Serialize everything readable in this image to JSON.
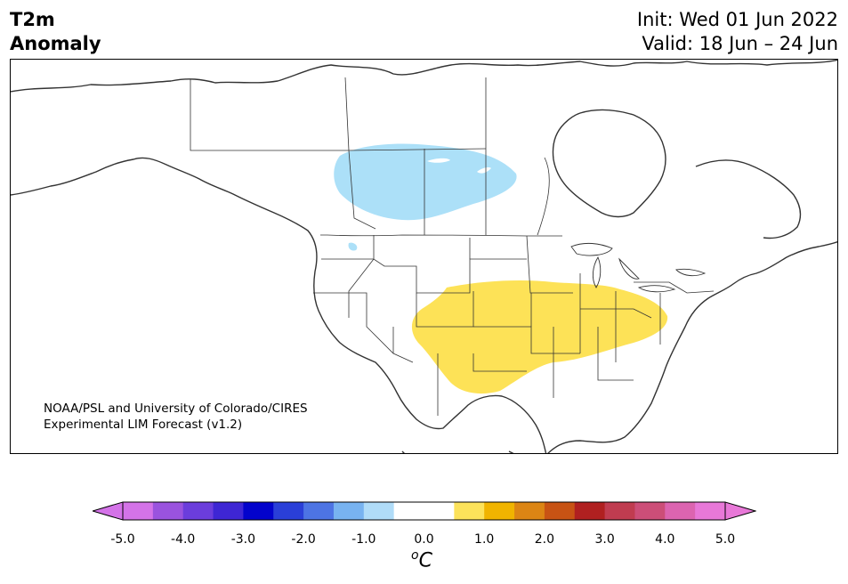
{
  "title": {
    "line1": "T2m",
    "line2": "Anomaly"
  },
  "forecast": {
    "init": "Init: Wed 01 Jun 2022",
    "valid": "Valid: 18 Jun – 24 Jun"
  },
  "credit": {
    "line1": "NOAA/PSL and University of Colorado/CIRES",
    "line2": "Experimental LIM Forecast (v1.2)"
  },
  "colorbar": {
    "unit_symbol": "o",
    "unit_letter": "C",
    "tick_labels": [
      "-5.0",
      "-4.0",
      "-3.0",
      "-2.0",
      "-1.0",
      "0.0",
      "1.0",
      "2.0",
      "3.0",
      "4.0",
      "5.0"
    ],
    "colors": [
      "#d473e8",
      "#9a53de",
      "#6b3ddc",
      "#3e26d4",
      "#0303cc",
      "#2a3fd8",
      "#4d74e4",
      "#78b3f0",
      "#b0dcf8",
      "#ffffff",
      "#ffffff",
      "#fce25a",
      "#f0b400",
      "#dc8514",
      "#c85314",
      "#b02020",
      "#c03c50",
      "#cc4e78",
      "#dc64b0",
      "#e878d8"
    ],
    "under_color": "#d473e8",
    "over_color": "#e878d8"
  },
  "anomalies": [
    {
      "region": "Canadian Prairies",
      "sign": "negative",
      "color": "#ace0f8"
    },
    {
      "region": "Central and Eastern United States",
      "sign": "positive",
      "color": "#fde257"
    }
  ]
}
